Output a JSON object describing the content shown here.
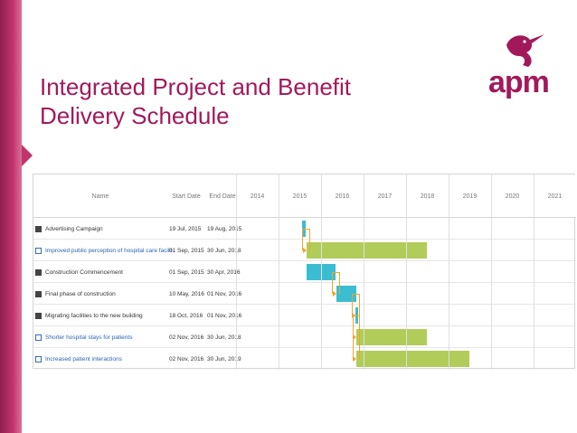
{
  "slide": {
    "title_line1": "Integrated Project and Benefit",
    "title_line2": "Delivery Schedule",
    "logo_text": "apm",
    "accent": "#a2195b"
  },
  "gantt": {
    "headers": {
      "name": "Name",
      "start": "Start Date",
      "end": "End Date"
    },
    "years": [
      "2014",
      "2015",
      "2016",
      "2017",
      "2018",
      "2019",
      "2020",
      "2021"
    ],
    "rows": [
      {
        "icon": "calendar-icon",
        "name": "Advertising Campaign",
        "start": "19 Jul, 2015",
        "end": "19 Aug, 2015",
        "type": "task",
        "color": "#3bbdd1",
        "from": 2015.55,
        "to": 2015.63
      },
      {
        "icon": "benefit-icon",
        "name": "Improved public perception of hospital care facilit",
        "start": "01 Sep, 2015",
        "end": "30 Jun, 2018",
        "type": "benefit",
        "color": "#b1cc59",
        "from": 2015.67,
        "to": 2018.5
      },
      {
        "icon": "calendar-icon",
        "name": "Construction Commencement",
        "start": "01 Sep, 2015",
        "end": "30 Apr, 2016",
        "type": "task",
        "color": "#3bbdd1",
        "from": 2015.67,
        "to": 2016.33
      },
      {
        "icon": "calendar-icon",
        "name": "Final phase of construction",
        "start": "10 May, 2016",
        "end": "01 Nov, 2016",
        "type": "task",
        "color": "#3bbdd1",
        "from": 2016.36,
        "to": 2016.84
      },
      {
        "icon": "calendar-icon",
        "name": "Migrating facilities to the new building",
        "start": "18 Oct, 2016",
        "end": "01 Nov, 2016",
        "type": "task",
        "color": "#3bbdd1",
        "from": 2016.8,
        "to": 2016.84
      },
      {
        "icon": "benefit-icon",
        "name": "Shorter hospital stays for patients",
        "start": "02 Nov, 2016",
        "end": "30 Jun, 2018",
        "type": "benefit",
        "color": "#b1cc59",
        "from": 2016.84,
        "to": 2018.5
      },
      {
        "icon": "benefit-icon",
        "name": "Increased patient interactions",
        "start": "02 Nov, 2016",
        "end": "30 Jun, 2019",
        "type": "benefit",
        "color": "#b1cc59",
        "from": 2016.84,
        "to": 2019.5
      }
    ],
    "connector_color": "#f0a42a"
  }
}
